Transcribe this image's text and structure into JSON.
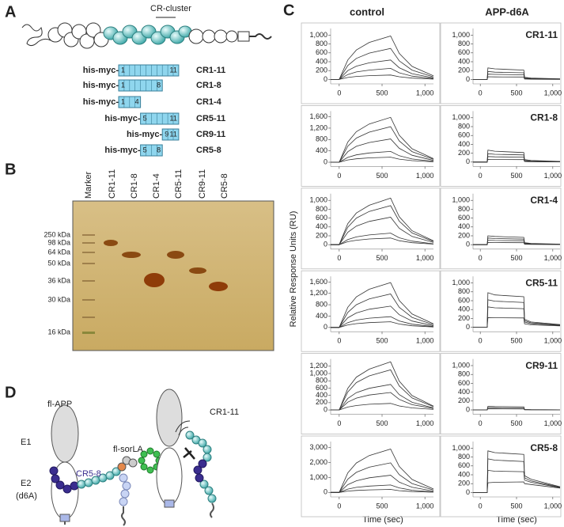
{
  "panel_a": {
    "label": "A",
    "cluster_label": "CR-cluster",
    "constructs": [
      {
        "prefix": "his-myc-",
        "start": 1,
        "end": 11,
        "name": "CR1-11"
      },
      {
        "prefix": "his-myc-",
        "start": 1,
        "end": 8,
        "name": "CR1-8"
      },
      {
        "prefix": "his-myc-",
        "start": 1,
        "end": 4,
        "name": "CR1-4"
      },
      {
        "prefix": "his-myc-",
        "start": 5,
        "end": 11,
        "name": "CR5-11"
      },
      {
        "prefix": "his-myc-",
        "start": 9,
        "end": 11,
        "name": "CR9-11"
      },
      {
        "prefix": "his-myc-",
        "start": 5,
        "end": 8,
        "name": "CR5-8"
      }
    ]
  },
  "panel_b": {
    "label": "B",
    "lanes": [
      "Marker",
      "CR1-11",
      "CR1-8",
      "CR1-4",
      "CR5-11",
      "CR9-11",
      "CR5-8"
    ],
    "markers": [
      "250 kDa",
      "98 kDa",
      "64 kDa",
      "50 kDa",
      "36 kDa",
      "30 kDa",
      "16 kDa"
    ]
  },
  "panel_c": {
    "label": "C",
    "columns": [
      "control",
      "APP-d6A"
    ],
    "ylabel": "Relative Response Units (RU)",
    "xlabel": "Time (sec)"
  },
  "panel_d": {
    "label": "D",
    "app": "fl-APP",
    "e1": "E1",
    "e2": "E2",
    "d6a": "(d6A)",
    "sorla": "fl-sorLA",
    "cr58": "CR5-8",
    "cr111": "CR1-11"
  },
  "chart_data": [
    {
      "type": "line",
      "color": "#333333",
      "xlim": [
        -100,
        1100
      ],
      "xticks": [
        0,
        500,
        {
          "value": 1000,
          "label": "1,000"
        }
      ],
      "ylim": [
        -100,
        1150
      ],
      "yticks": [
        0,
        200,
        400,
        600,
        800,
        {
          "value": 1000,
          "label": "1,000"
        }
      ],
      "x": [
        -100,
        0,
        100,
        200,
        350,
        600,
        700,
        850,
        1100
      ],
      "series": [
        {
          "values": [
            0,
            0,
            440,
            665,
            835,
            980,
            590,
            295,
            80
          ]
        },
        {
          "values": [
            0,
            0,
            315,
            475,
            595,
            700,
            420,
            210,
            55
          ]
        },
        {
          "values": [
            0,
            0,
            200,
            300,
            375,
            440,
            265,
            130,
            35
          ]
        },
        {
          "values": [
            0,
            0,
            110,
            170,
            210,
            250,
            150,
            75,
            20
          ]
        },
        {
          "values": [
            0,
            0,
            45,
            68,
            85,
            100,
            60,
            30,
            8
          ]
        }
      ]
    },
    {
      "type": "line",
      "color": "#333333",
      "label": "CR1-11",
      "xlim": [
        -100,
        1100
      ],
      "xticks": [
        0,
        500,
        {
          "value": 1000,
          "label": "1,000"
        }
      ],
      "ylim": [
        -100,
        1150
      ],
      "yticks": [
        0,
        200,
        400,
        600,
        800,
        {
          "value": 1000,
          "label": "1,000"
        }
      ],
      "x": [
        -100,
        95,
        105,
        200,
        600,
        610,
        700,
        1100
      ],
      "series": [
        {
          "values": [
            0,
            0,
            260,
            240,
            210,
            50,
            30,
            15
          ]
        },
        {
          "values": [
            0,
            0,
            180,
            165,
            150,
            30,
            20,
            10
          ]
        },
        {
          "values": [
            0,
            0,
            120,
            115,
            105,
            20,
            12,
            5
          ]
        },
        {
          "values": [
            0,
            0,
            60,
            58,
            55,
            10,
            5,
            2
          ]
        }
      ]
    },
    {
      "type": "line",
      "color": "#333333",
      "xlim": [
        -100,
        1100
      ],
      "xticks": [
        0,
        500,
        {
          "value": 1000,
          "label": "1,000"
        }
      ],
      "ylim": [
        -150,
        1800
      ],
      "yticks": [
        0,
        400,
        800,
        {
          "value": 1200,
          "label": "1,200"
        },
        {
          "value": 1600,
          "label": "1,600"
        }
      ],
      "x": [
        -100,
        0,
        100,
        200,
        350,
        600,
        700,
        850,
        1100
      ],
      "series": [
        {
          "values": [
            0,
            0,
            710,
            1075,
            1345,
            1580,
            950,
            475,
            125
          ]
        },
        {
          "values": [
            0,
            0,
            565,
            850,
            1060,
            1250,
            750,
            375,
            100
          ]
        },
        {
          "values": [
            0,
            0,
            370,
            560,
            695,
            820,
            490,
            245,
            65
          ]
        },
        {
          "values": [
            0,
            0,
            170,
            260,
            325,
            380,
            230,
            115,
            30
          ]
        },
        {
          "values": [
            0,
            0,
            80,
            120,
            155,
            180,
            110,
            55,
            15
          ]
        }
      ]
    },
    {
      "type": "line",
      "color": "#333333",
      "label": "CR1-8",
      "xlim": [
        -100,
        1100
      ],
      "xticks": [
        0,
        500,
        {
          "value": 1000,
          "label": "1,000"
        }
      ],
      "ylim": [
        -100,
        1150
      ],
      "yticks": [
        0,
        200,
        400,
        600,
        800,
        {
          "value": 1000,
          "label": "1,000"
        }
      ],
      "x": [
        -100,
        95,
        105,
        200,
        600,
        610,
        700,
        1100
      ],
      "series": [
        {
          "values": [
            0,
            0,
            270,
            245,
            215,
            55,
            35,
            15
          ]
        },
        {
          "values": [
            0,
            0,
            190,
            175,
            160,
            35,
            22,
            10
          ]
        },
        {
          "values": [
            0,
            0,
            125,
            118,
            110,
            22,
            14,
            6
          ]
        },
        {
          "values": [
            0,
            0,
            60,
            58,
            55,
            12,
            6,
            3
          ]
        }
      ]
    },
    {
      "type": "line",
      "color": "#333333",
      "xlim": [
        -100,
        1100
      ],
      "xticks": [
        0,
        500,
        {
          "value": 1000,
          "label": "1,000"
        }
      ],
      "ylim": [
        -100,
        1150
      ],
      "yticks": [
        0,
        200,
        400,
        600,
        800,
        {
          "value": 1000,
          "label": "1,000"
        }
      ],
      "x": [
        -100,
        0,
        100,
        200,
        350,
        600,
        700,
        850,
        1100
      ],
      "series": [
        {
          "values": [
            0,
            0,
            475,
            715,
            890,
            1050,
            630,
            315,
            85
          ]
        },
        {
          "values": [
            0,
            0,
            395,
            600,
            750,
            880,
            530,
            265,
            70
          ]
        },
        {
          "values": [
            0,
            0,
            280,
            420,
            525,
            620,
            370,
            185,
            50
          ]
        },
        {
          "values": [
            0,
            0,
            115,
            175,
            220,
            260,
            155,
            80,
            20
          ]
        },
        {
          "values": [
            0,
            0,
            68,
            100,
            128,
            150,
            90,
            45,
            12
          ]
        }
      ]
    },
    {
      "type": "line",
      "color": "#333333",
      "label": "CR1-4",
      "xlim": [
        -100,
        1100
      ],
      "xticks": [
        0,
        500,
        {
          "value": 1000,
          "label": "1,000"
        }
      ],
      "ylim": [
        -100,
        1150
      ],
      "yticks": [
        0,
        200,
        400,
        600,
        800,
        {
          "value": 1000,
          "label": "1,000"
        }
      ],
      "x": [
        -100,
        95,
        105,
        200,
        600,
        610,
        700,
        1100
      ],
      "series": [
        {
          "values": [
            0,
            0,
            200,
            185,
            165,
            45,
            28,
            12
          ]
        },
        {
          "values": [
            0,
            0,
            150,
            140,
            125,
            30,
            20,
            8
          ]
        },
        {
          "values": [
            0,
            0,
            100,
            95,
            88,
            20,
            12,
            5
          ]
        },
        {
          "values": [
            0,
            0,
            50,
            48,
            45,
            10,
            6,
            2
          ]
        }
      ]
    },
    {
      "type": "line",
      "color": "#333333",
      "xlim": [
        -100,
        1100
      ],
      "xticks": [
        0,
        500,
        {
          "value": 1000,
          "label": "1,000"
        }
      ],
      "ylim": [
        -150,
        1800
      ],
      "yticks": [
        0,
        400,
        800,
        {
          "value": 1200,
          "label": "1,200"
        },
        {
          "value": 1600,
          "label": "1,600"
        }
      ],
      "x": [
        -100,
        0,
        100,
        200,
        350,
        600,
        700,
        850,
        1100
      ],
      "series": [
        {
          "values": [
            0,
            0,
            710,
            1075,
            1345,
            1580,
            950,
            475,
            125
          ]
        },
        {
          "values": [
            0,
            0,
            530,
            800,
            1005,
            1180,
            710,
            355,
            95
          ]
        },
        {
          "values": [
            0,
            0,
            340,
            510,
            640,
            750,
            450,
            225,
            60
          ]
        },
        {
          "values": [
            0,
            0,
            170,
            260,
            325,
            380,
            230,
            115,
            30
          ]
        },
        {
          "values": [
            0,
            0,
            90,
            135,
            170,
            200,
            120,
            60,
            16
          ]
        }
      ]
    },
    {
      "type": "line",
      "color": "#333333",
      "label": "CR5-11",
      "xlim": [
        -100,
        1100
      ],
      "xticks": [
        0,
        500,
        {
          "value": 1000,
          "label": "1,000"
        }
      ],
      "ylim": [
        -100,
        1150
      ],
      "yticks": [
        0,
        200,
        400,
        600,
        800,
        {
          "value": 1000,
          "label": "1,000"
        }
      ],
      "x": [
        -100,
        95,
        105,
        200,
        600,
        610,
        700,
        1100
      ],
      "series": [
        {
          "values": [
            0,
            0,
            780,
            730,
            690,
            180,
            120,
            60
          ]
        },
        {
          "values": [
            0,
            0,
            620,
            590,
            560,
            150,
            100,
            50
          ]
        },
        {
          "values": [
            0,
            0,
            460,
            440,
            420,
            120,
            80,
            40
          ]
        },
        {
          "values": [
            0,
            0,
            220,
            215,
            210,
            80,
            55,
            30
          ]
        }
      ]
    },
    {
      "type": "line",
      "color": "#333333",
      "xlim": [
        -100,
        1100
      ],
      "xticks": [
        0,
        500,
        {
          "value": 1000,
          "label": "1,000"
        }
      ],
      "ylim": [
        -120,
        1400
      ],
      "yticks": [
        0,
        200,
        400,
        600,
        800,
        {
          "value": 1000,
          "label": "1,000"
        },
        {
          "value": 1200,
          "label": "1,200"
        }
      ],
      "x": [
        -100,
        0,
        100,
        200,
        350,
        600,
        700,
        850,
        1100
      ],
      "series": [
        {
          "values": [
            0,
            0,
            595,
            900,
            1120,
            1320,
            790,
            395,
            105
          ]
        },
        {
          "values": [
            0,
            0,
            495,
            750,
            935,
            1100,
            660,
            330,
            90
          ]
        },
        {
          "values": [
            0,
            0,
            315,
            475,
            595,
            700,
            420,
            210,
            55
          ]
        },
        {
          "values": [
            0,
            0,
            215,
            325,
            410,
            480,
            290,
            145,
            40
          ]
        },
        {
          "values": [
            0,
            0,
            80,
            120,
            155,
            180,
            110,
            55,
            15
          ]
        }
      ]
    },
    {
      "type": "line",
      "color": "#333333",
      "label": "CR9-11",
      "xlim": [
        -100,
        1100
      ],
      "xticks": [
        0,
        500,
        {
          "value": 1000,
          "label": "1,000"
        }
      ],
      "ylim": [
        -100,
        1150
      ],
      "yticks": [
        0,
        200,
        400,
        600,
        800,
        {
          "value": 1000,
          "label": "1,000"
        }
      ],
      "x": [
        -100,
        95,
        105,
        200,
        600,
        610,
        700,
        1100
      ],
      "series": [
        {
          "values": [
            0,
            0,
            80,
            75,
            70,
            10,
            5,
            2
          ]
        },
        {
          "values": [
            0,
            0,
            50,
            48,
            45,
            5,
            3,
            1
          ]
        },
        {
          "values": [
            0,
            0,
            25,
            24,
            22,
            3,
            2,
            1
          ]
        }
      ]
    },
    {
      "type": "line",
      "color": "#333333",
      "xlim": [
        -100,
        1100
      ],
      "xticks": [
        0,
        500,
        {
          "value": 1000,
          "label": "1,000"
        }
      ],
      "ylim": [
        -300,
        3400
      ],
      "yticks": [
        0,
        {
          "value": 1000,
          "label": "1,000"
        },
        {
          "value": 2000,
          "label": "2,000"
        },
        {
          "value": 3000,
          "label": "3,000"
        }
      ],
      "x": [
        -100,
        0,
        100,
        200,
        350,
        600,
        700,
        850,
        1100
      ],
      "series": [
        {
          "values": [
            0,
            0,
            1305,
            1970,
            2465,
            2900,
            1740,
            870,
            230
          ]
        },
        {
          "values": [
            0,
            0,
            890,
            1345,
            1685,
            1980,
            1190,
            595,
            160
          ]
        },
        {
          "values": [
            0,
            0,
            520,
            780,
            980,
            1150,
            690,
            345,
            90
          ]
        },
        {
          "values": [
            0,
            0,
            225,
            340,
            425,
            500,
            300,
            150,
            40
          ]
        },
        {
          "values": [
            0,
            0,
            90,
            135,
            170,
            200,
            120,
            60,
            16
          ]
        }
      ]
    },
    {
      "type": "line",
      "color": "#333333",
      "label": "CR5-8",
      "xlim": [
        -100,
        1100
      ],
      "xticks": [
        0,
        500,
        {
          "value": 1000,
          "label": "1,000"
        }
      ],
      "ylim": [
        -100,
        1150
      ],
      "yticks": [
        0,
        200,
        400,
        600,
        800,
        {
          "value": 1000,
          "label": "1,000"
        }
      ],
      "x": [
        -100,
        95,
        105,
        200,
        600,
        610,
        700,
        1100
      ],
      "series": [
        {
          "values": [
            0,
            0,
            940,
            900,
            860,
            380,
            300,
            130
          ]
        },
        {
          "values": [
            0,
            0,
            760,
            730,
            700,
            330,
            260,
            120
          ]
        },
        {
          "values": [
            0,
            0,
            500,
            480,
            470,
            280,
            230,
            110
          ]
        },
        {
          "values": [
            0,
            0,
            220,
            230,
            240,
            200,
            180,
            100
          ]
        }
      ]
    }
  ]
}
